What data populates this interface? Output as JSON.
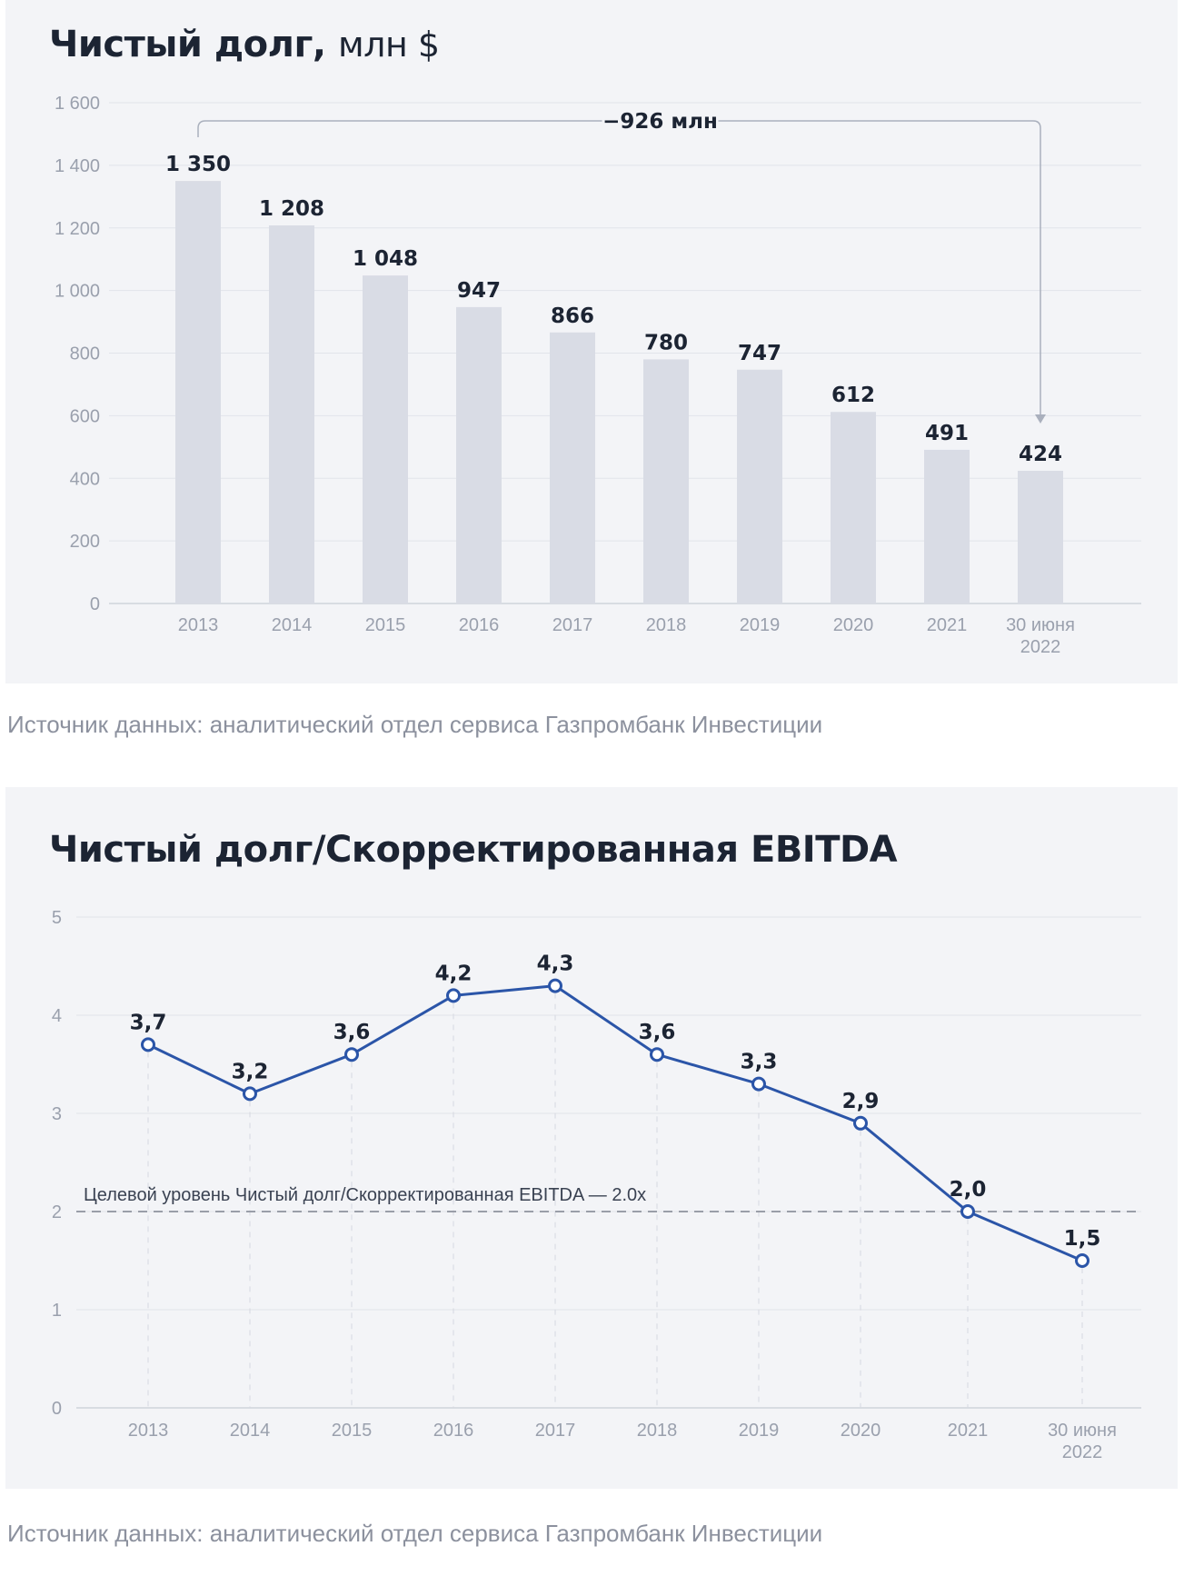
{
  "chart1": {
    "title_main": "Чистый долг,",
    "title_unit": "млн $",
    "source": "Источник данных: аналитический отдел сервиса Газпромбанк Инвестиции",
    "annotation": "−926 млн",
    "colors": {
      "bar": "#d9dce5",
      "grid": "#e1e4ea",
      "arrow": "#aab0bd"
    }
  },
  "chart2": {
    "title": "Чистый долг/Скорректированная EBITDA",
    "source": "Источник данных: аналитический отдел сервиса Газпромбанк Инвестиции",
    "target_label": "Целевой уровень Чистый долг/Скорректированная EBITDA — 2.0x",
    "colors": {
      "line": "#2b55a8",
      "grid": "#e1e4ea",
      "target": "#9a9ea8"
    }
  },
  "chart_data": [
    {
      "type": "bar",
      "title": "Чистый долг, млн $",
      "categories": [
        "2013",
        "2014",
        "2015",
        "2016",
        "2017",
        "2018",
        "2019",
        "2020",
        "2021",
        "30 июня 2022"
      ],
      "values": [
        1350,
        1208,
        1048,
        947,
        866,
        780,
        747,
        612,
        491,
        424
      ],
      "data_labels": [
        "1 350",
        "1 208",
        "1 048",
        "947",
        "866",
        "780",
        "747",
        "612",
        "491",
        "424"
      ],
      "yticks": [
        "0",
        "200",
        "400",
        "600",
        "800",
        "1 000",
        "1 200",
        "1 400",
        "1 600"
      ],
      "ylim": [
        0,
        1600
      ],
      "grid": true,
      "annotation": {
        "text": "−926 млн",
        "from": "2013",
        "to": "30 июня 2022"
      }
    },
    {
      "type": "line",
      "title": "Чистый долг/Скорректированная EBITDA",
      "categories": [
        "2013",
        "2014",
        "2015",
        "2016",
        "2017",
        "2018",
        "2019",
        "2020",
        "2021",
        "30 июня 2022"
      ],
      "values": [
        3.7,
        3.2,
        3.6,
        4.2,
        4.3,
        3.6,
        3.3,
        2.9,
        2.0,
        1.5
      ],
      "data_labels": [
        "3,7",
        "3,2",
        "3,6",
        "4,2",
        "4,3",
        "3,6",
        "3,3",
        "2,9",
        "2,0",
        "1,5"
      ],
      "yticks": [
        "0",
        "1",
        "2",
        "3",
        "4",
        "5"
      ],
      "ylim": [
        0,
        5
      ],
      "grid": true,
      "target": {
        "value": 2.0,
        "label": "Целевой уровень Чистый долг/Скорректированная EBITDA — 2.0x"
      }
    }
  ]
}
